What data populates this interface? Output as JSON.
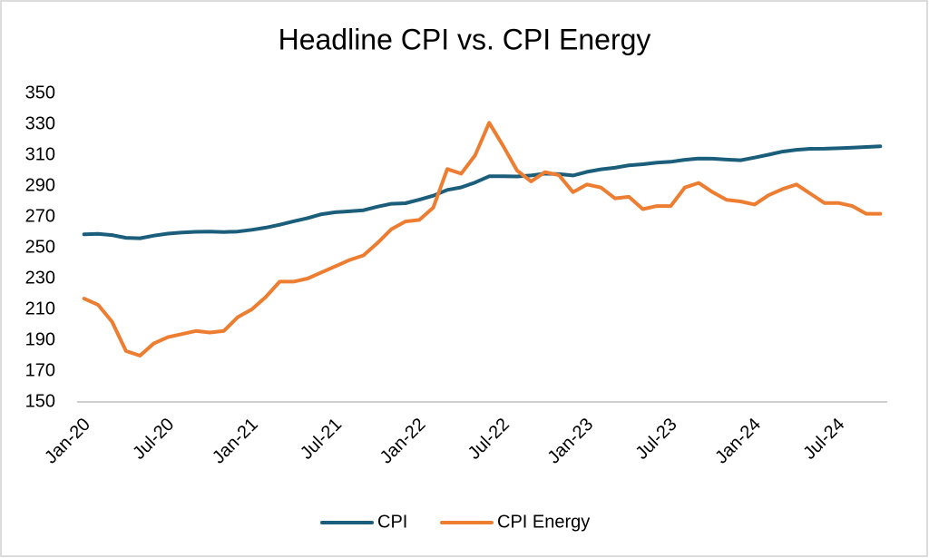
{
  "chart_data": {
    "type": "line",
    "title": "Headline CPI vs. CPI Energy",
    "categories": [
      "Jan-20",
      null,
      null,
      null,
      null,
      null,
      "Jul-20",
      null,
      null,
      null,
      null,
      null,
      "Jan-21",
      null,
      null,
      null,
      null,
      null,
      "Jul-21",
      null,
      null,
      null,
      null,
      null,
      "Jan-22",
      null,
      null,
      null,
      null,
      null,
      "Jul-22",
      null,
      null,
      null,
      null,
      null,
      "Jan-23",
      null,
      null,
      null,
      null,
      null,
      "Jul-23",
      null,
      null,
      null,
      null,
      null,
      "Jan-24",
      null,
      null,
      null,
      null,
      null,
      "Jul-24",
      null,
      null,
      null
    ],
    "series": [
      {
        "name": "CPI",
        "color": "#1b5e7b",
        "values": [
          258.7,
          259.0,
          258.2,
          256.4,
          256.1,
          257.8,
          259.1,
          259.9,
          260.3,
          260.4,
          260.2,
          260.5,
          261.6,
          263.0,
          264.9,
          267.1,
          269.2,
          271.7,
          273.0,
          273.6,
          274.3,
          276.6,
          278.5,
          278.8,
          281.1,
          283.7,
          287.5,
          289.1,
          292.3,
          296.3,
          296.3,
          296.2,
          296.8,
          298.0,
          297.7,
          296.8,
          299.2,
          300.8,
          301.8,
          303.4,
          304.1,
          305.1,
          305.7,
          307.0,
          307.8,
          307.7,
          307.1,
          306.7,
          308.4,
          310.3,
          312.3,
          313.5,
          314.1,
          314.2,
          314.5,
          314.8,
          315.3,
          315.7
        ]
      },
      {
        "name": "CPI Energy",
        "color": "#ed7d31",
        "values": [
          217,
          213,
          202,
          183,
          180,
          188,
          192,
          194,
          196,
          195,
          196,
          205,
          210,
          218,
          228,
          228,
          230,
          234,
          238,
          242,
          245,
          253,
          262,
          267,
          268,
          276,
          301,
          298,
          310,
          331,
          316,
          300,
          293,
          299,
          297,
          286,
          291,
          289,
          282,
          283,
          275,
          277,
          277,
          289,
          292,
          286,
          281,
          280,
          278,
          284,
          288,
          291,
          285,
          279,
          279,
          277,
          272,
          272
        ]
      }
    ],
    "ylim": [
      150,
      350
    ],
    "yticks": [
      150,
      170,
      190,
      210,
      230,
      250,
      270,
      290,
      310,
      330,
      350
    ],
    "grid": false,
    "legend": "bottom"
  }
}
